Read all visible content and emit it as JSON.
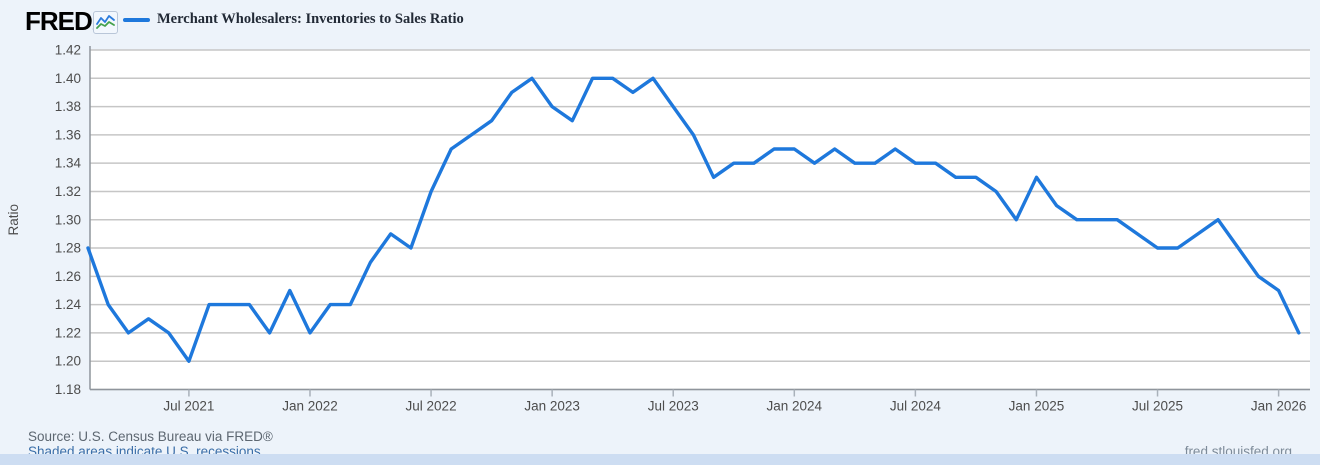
{
  "header": {
    "logo_text": "FRED",
    "logo_reg": "®",
    "series_title": "Merchant Wholesalers: Inventories to Sales Ratio"
  },
  "footer": {
    "source": "Source: U.S. Census Bureau via FRED®",
    "recessions_note": "Shaded areas indicate U.S. recessions.",
    "site": "fred.stlouisfed.org"
  },
  "colors": {
    "line": "#1e78dc",
    "page_bg": "#edf3fa",
    "plot_bg": "#ffffff",
    "grid": "#c6c6c6",
    "axis": "#8f959c",
    "tick_mark": "#a9b1ba",
    "tick_text": "#4d4d4d",
    "legend_text": "#222a36",
    "source_text": "#5d6771",
    "link": "#3a6ea8",
    "site_text": "#7d8b99",
    "bottom_bar": "#cdddf2",
    "logo_icon_blue": "#2b7bdd",
    "logo_icon_green": "#44a14c"
  },
  "chart_data": {
    "type": "line",
    "title": "Merchant Wholesalers: Inventories to Sales Ratio",
    "xlabel": "",
    "ylabel": "Ratio",
    "ylim": [
      1.18,
      1.42
    ],
    "grid": true,
    "legend_position": "top-left",
    "frequency": "monthly",
    "y_ticks": [
      1.42,
      1.4,
      1.38,
      1.36,
      1.34,
      1.32,
      1.3,
      1.28,
      1.26,
      1.24,
      1.22,
      1.2,
      1.18
    ],
    "x_ticks": [
      {
        "label": "Jul 2021",
        "month_index": 5
      },
      {
        "label": "Jan 2022",
        "month_index": 11
      },
      {
        "label": "Jul 2022",
        "month_index": 17
      },
      {
        "label": "Jan 2023",
        "month_index": 23
      },
      {
        "label": "Jul 2023",
        "month_index": 29
      },
      {
        "label": "Jan 2024",
        "month_index": 35
      },
      {
        "label": "Jul 2024",
        "month_index": 41
      },
      {
        "label": "Jan 2025",
        "month_index": 47
      },
      {
        "label": "Jul 2025",
        "month_index": 53
      },
      {
        "label": "Jan 2026",
        "month_index": 59
      }
    ],
    "x": [
      "Feb 2021",
      "Mar 2021",
      "Apr 2021",
      "May 2021",
      "Jun 2021",
      "Jul 2021",
      "Aug 2021",
      "Sep 2021",
      "Oct 2021",
      "Nov 2021",
      "Dec 2021",
      "Jan 2022",
      "Feb 2022",
      "Mar 2022",
      "Apr 2022",
      "May 2022",
      "Jun 2022",
      "Jul 2022",
      "Aug 2022",
      "Sep 2022",
      "Oct 2022",
      "Nov 2022",
      "Dec 2022",
      "Jan 2023",
      "Feb 2023",
      "Mar 2023",
      "Apr 2023",
      "May 2023",
      "Jun 2023",
      "Jul 2023",
      "Aug 2023",
      "Sep 2023",
      "Oct 2023",
      "Nov 2023",
      "Dec 2023",
      "Jan 2024",
      "Feb 2024",
      "Mar 2024",
      "Apr 2024",
      "May 2024",
      "Jun 2024",
      "Jul 2024",
      "Aug 2024",
      "Sep 2024",
      "Oct 2024",
      "Nov 2024",
      "Dec 2024",
      "Jan 2025",
      "Feb 2025",
      "Mar 2025",
      "Apr 2025",
      "May 2025",
      "Jun 2025",
      "Jul 2025",
      "Aug 2025",
      "Sep 2025",
      "Oct 2025",
      "Nov 2025",
      "Dec 2025",
      "Jan 2026",
      "Feb 2026"
    ],
    "values": [
      1.28,
      1.24,
      1.22,
      1.23,
      1.22,
      1.2,
      1.24,
      1.24,
      1.24,
      1.22,
      1.25,
      1.22,
      1.24,
      1.24,
      1.27,
      1.29,
      1.28,
      1.32,
      1.35,
      1.36,
      1.37,
      1.39,
      1.4,
      1.38,
      1.37,
      1.4,
      1.4,
      1.39,
      1.4,
      1.38,
      1.36,
      1.33,
      1.34,
      1.34,
      1.35,
      1.35,
      1.34,
      1.35,
      1.34,
      1.34,
      1.35,
      1.34,
      1.34,
      1.33,
      1.33,
      1.32,
      1.3,
      1.33,
      1.31,
      1.3,
      1.3,
      1.3,
      1.29,
      1.28,
      1.28,
      1.29,
      1.3,
      1.28,
      1.26,
      1.25,
      1.22
    ]
  }
}
